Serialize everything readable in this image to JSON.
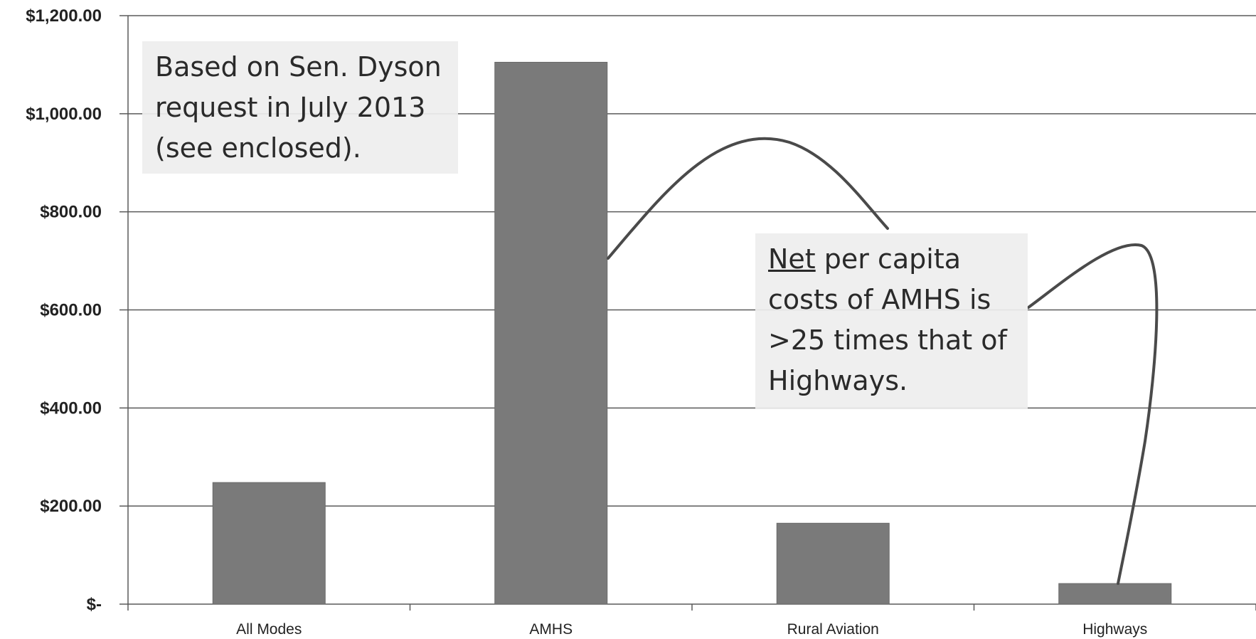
{
  "chart_data": {
    "type": "bar",
    "categories": [
      "All Modes",
      "AMHS",
      "Rural Aviation",
      "Highways"
    ],
    "values": [
      248,
      1105,
      165,
      42
    ],
    "ylim": [
      0,
      1200
    ],
    "y_ticks": [
      0,
      200,
      400,
      600,
      800,
      1000,
      1200
    ],
    "y_tick_labels": [
      "$-",
      "$200.00",
      "$400.00",
      "$600.00",
      "$800.00",
      "$1,000.00",
      "$1,200.00"
    ],
    "bar_color": "#7a7a7a",
    "grid": true,
    "annotations": [
      {
        "lines": [
          "Based on Sen. Dyson",
          "request in July 2013",
          "(see enclosed)."
        ]
      },
      {
        "underlined_word": "Net",
        "line1_rest": " per capita",
        "lines": [
          "costs of AMHS is",
          ">25 times that of",
          "Highways."
        ]
      }
    ]
  }
}
